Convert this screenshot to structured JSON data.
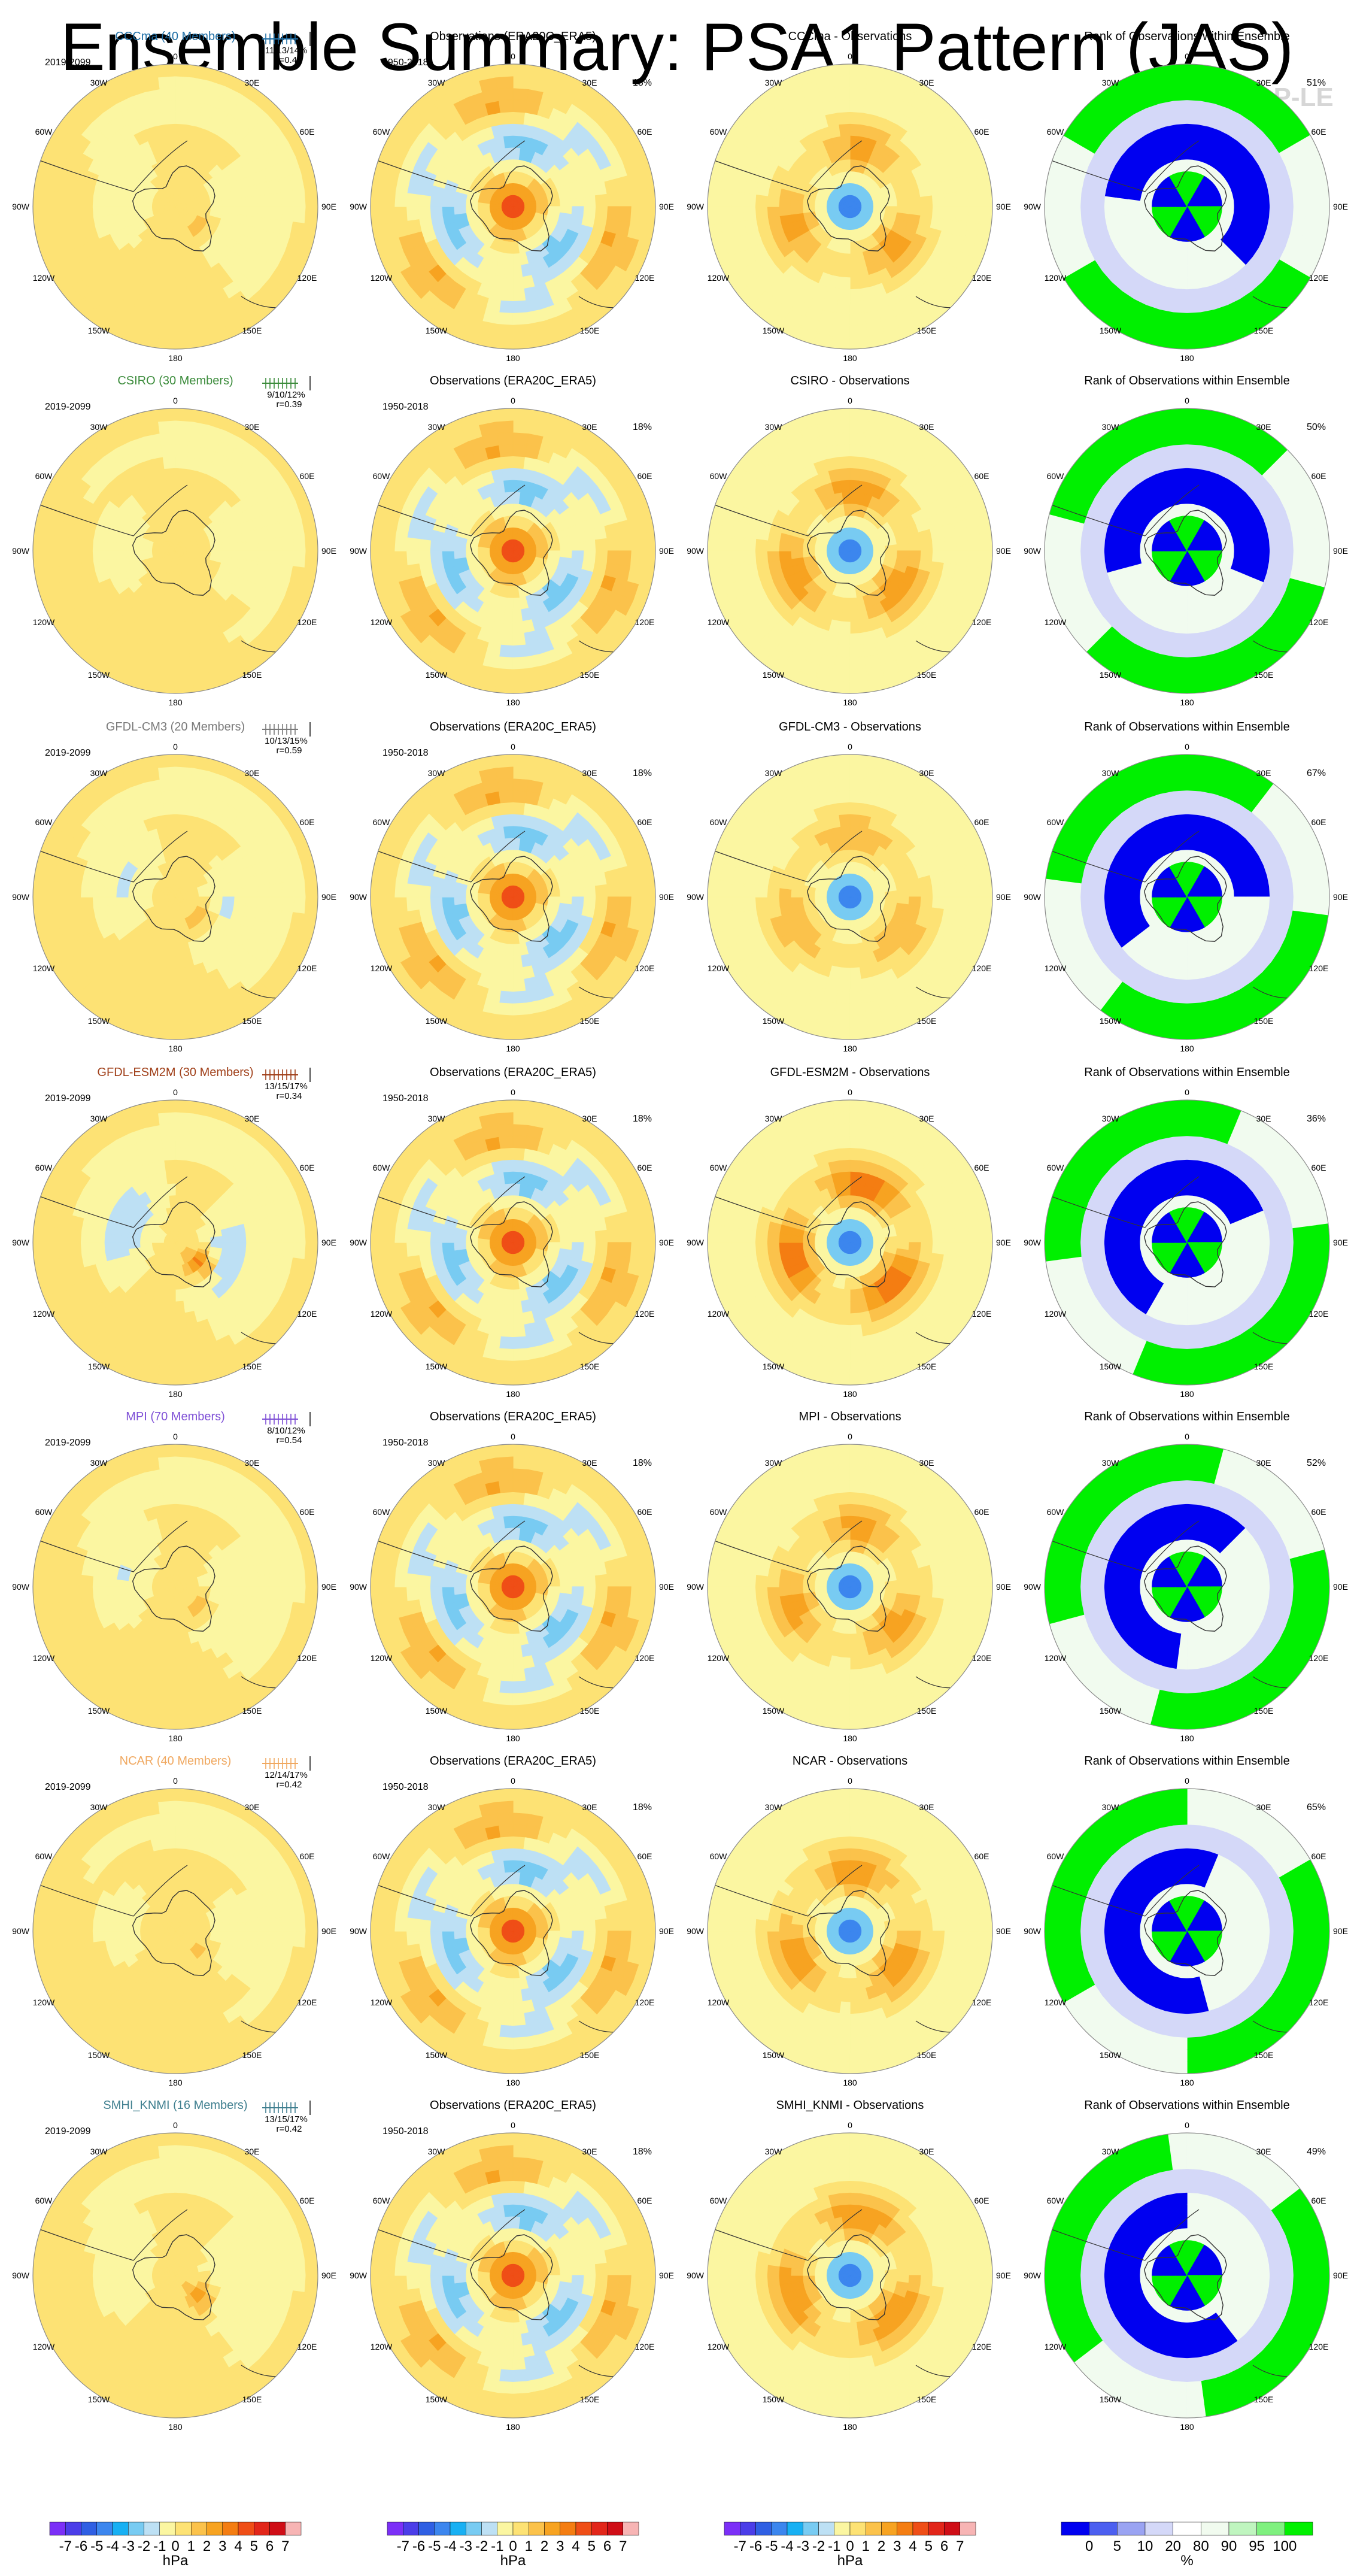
{
  "title": "Ensemble Summary: PSA1 Pattern (JAS)",
  "watermark": "© CVDP-LE",
  "colors": {
    "anomaly_scale": [
      "#7b2ff7",
      "#4b3de8",
      "#2f5fe3",
      "#3c86ee",
      "#18b0f3",
      "#78cbf2",
      "#bde0f4",
      "#fbf6a1",
      "#fde274",
      "#fbc24b",
      "#f7a321",
      "#f47d12",
      "#ef4e17",
      "#e2261a",
      "#cf0e17",
      "#f7b4b4"
    ],
    "rank_scale": [
      "#0000f0",
      "#4c5ff0",
      "#9aa3f2",
      "#d4d8f8",
      "#ffffff",
      "#f1fbef",
      "#bff5bf",
      "#7ff07f",
      "#00f000"
    ]
  },
  "longitude_labels": {
    "top": "0",
    "bottom": "180",
    "upper_left": "30W",
    "upper_right": "30E",
    "left_upper": "60W",
    "right_upper": "60E",
    "left_mid": "90W",
    "right_mid": "90E",
    "left_lower": "120W",
    "right_lower": "120E",
    "lower_left": "150W",
    "lower_right": "150E"
  },
  "rows": [
    {
      "model": "CCCma (40 Members)",
      "model_color": "#1f6fa6",
      "period": "2019-2099",
      "stats_text": "11/13/14%",
      "stats_r": "r=0.44",
      "obs_title": "Observations (ERA20C_ERA5)",
      "obs_period": "1950-2018",
      "obs_pct": "18%",
      "diff_title": "CCCma - Observations",
      "rank_title": "Rank of Observations within Ensemble",
      "rank_pct": "51%",
      "model_pattern": {
        "amp": 0.45,
        "phase": 0.3,
        "warm_centre": 0.9
      },
      "diff_pattern": {
        "amp": 0.9,
        "phase": 0.0
      }
    },
    {
      "model": "CSIRO (30 Members)",
      "model_color": "#3c8c3c",
      "period": "2019-2099",
      "stats_text": "9/10/12%",
      "stats_r": "r=0.39",
      "obs_title": "Observations (ERA20C_ERA5)",
      "obs_period": "1950-2018",
      "obs_pct": "18%",
      "diff_title": "CSIRO - Observations",
      "rank_title": "Rank of Observations within Ensemble",
      "rank_pct": "50%",
      "model_pattern": {
        "amp": 0.35,
        "phase": 0.6,
        "warm_centre": 0.5
      },
      "diff_pattern": {
        "amp": 1.0,
        "phase": 0.2
      }
    },
    {
      "model": "GFDL-CM3 (20 Members)",
      "model_color": "#7a7a7a",
      "period": "2019-2099",
      "stats_text": "10/13/15%",
      "stats_r": "r=0.59",
      "obs_title": "Observations (ERA20C_ERA5)",
      "obs_period": "1950-2018",
      "obs_pct": "18%",
      "diff_title": "GFDL-CM3 - Observations",
      "rank_title": "Rank of Observations within Ensemble",
      "rank_pct": "67%",
      "model_pattern": {
        "amp": 0.6,
        "phase": 0.1,
        "warm_centre": 1.2
      },
      "diff_pattern": {
        "amp": 0.8,
        "phase": 0.4
      }
    },
    {
      "model": "GFDL-ESM2M (30 Members)",
      "model_color": "#a0401a",
      "period": "2019-2099",
      "stats_text": "13/15/17%",
      "stats_r": "r=0.34",
      "obs_title": "Observations (ERA20C_ERA5)",
      "obs_period": "1950-2018",
      "obs_pct": "18%",
      "diff_title": "GFDL-ESM2M - Observations",
      "rank_title": "Rank of Observations within Ensemble",
      "rank_pct": "36%",
      "model_pattern": {
        "amp": 0.9,
        "phase": 0.0,
        "warm_centre": 2.2
      },
      "diff_pattern": {
        "amp": 1.3,
        "phase": -0.2
      }
    },
    {
      "model": "MPI (70 Members)",
      "model_color": "#7e4fd6",
      "period": "2019-2099",
      "stats_text": "8/10/12%",
      "stats_r": "r=0.54",
      "obs_title": "Observations (ERA20C_ERA5)",
      "obs_period": "1950-2018",
      "obs_pct": "18%",
      "diff_title": "MPI - Observations",
      "rank_title": "Rank of Observations within Ensemble",
      "rank_pct": "52%",
      "model_pattern": {
        "amp": 0.55,
        "phase": 0.2,
        "warm_centre": 1.0
      },
      "diff_pattern": {
        "amp": 0.9,
        "phase": 0.1
      }
    },
    {
      "model": "NCAR (40 Members)",
      "model_color": "#f0a860",
      "period": "2019-2099",
      "stats_text": "12/14/17%",
      "stats_r": "r=0.42",
      "obs_title": "Observations (ERA20C_ERA5)",
      "obs_period": "1950-2018",
      "obs_pct": "18%",
      "diff_title": "NCAR - Observations",
      "rank_title": "Rank of Observations within Ensemble",
      "rank_pct": "65%",
      "model_pattern": {
        "amp": 0.3,
        "phase": 0.5,
        "warm_centre": 0.6
      },
      "diff_pattern": {
        "amp": 1.0,
        "phase": 0.3
      }
    },
    {
      "model": "SMHI_KNMI (16 Members)",
      "model_color": "#3f7f8f",
      "period": "2019-2099",
      "stats_text": "13/15/17%",
      "stats_r": "r=0.42",
      "obs_title": "Observations (ERA20C_ERA5)",
      "obs_period": "1950-2018",
      "obs_pct": "18%",
      "diff_title": "SMHI_KNMI - Observations",
      "rank_title": "Rank of Observations within Ensemble",
      "rank_pct": "49%",
      "model_pattern": {
        "amp": 0.5,
        "phase": 0.4,
        "warm_centre": 1.4
      },
      "diff_pattern": {
        "amp": 1.1,
        "phase": 0.0
      }
    }
  ],
  "colorbars": [
    {
      "labels": [
        "-7",
        "-6",
        "-5",
        "-4",
        "-3",
        "-2",
        "-1",
        "0",
        "1",
        "2",
        "3",
        "4",
        "5",
        "6",
        "7"
      ],
      "unit": "hPa"
    },
    {
      "labels": [
        "-7",
        "-6",
        "-5",
        "-4",
        "-3",
        "-2",
        "-1",
        "0",
        "1",
        "2",
        "3",
        "4",
        "5",
        "6",
        "7"
      ],
      "unit": "hPa"
    },
    {
      "labels": [
        "-7",
        "-6",
        "-5",
        "-4",
        "-3",
        "-2",
        "-1",
        "0",
        "1",
        "2",
        "3",
        "4",
        "5",
        "6",
        "7"
      ],
      "unit": "hPa"
    },
    {
      "labels": [
        "0",
        "5",
        "10",
        "20",
        "80",
        "90",
        "95",
        "100"
      ],
      "unit": "%"
    }
  ]
}
